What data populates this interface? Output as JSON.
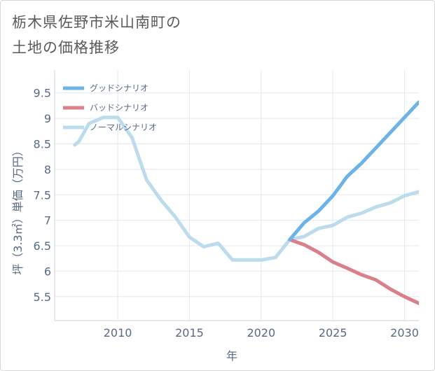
{
  "title_line1": "栃木県佐野市米山南町の",
  "title_line2": "土地の価格推移",
  "chart_data": {
    "type": "line",
    "xlabel": "年",
    "ylabel": "坪（3.3㎡）単価（万円）",
    "xlim": [
      2005.6,
      2031
    ],
    "ylim": [
      5.03,
      9.95
    ],
    "x_ticks": [
      2010,
      2015,
      2020,
      2025,
      2030
    ],
    "y_ticks": [
      5.5,
      6,
      6.5,
      7,
      7.5,
      8,
      8.5,
      9,
      9.5
    ],
    "grid": true,
    "legend_position": "top-left",
    "series": [
      {
        "name": "グッドシナリオ",
        "color": "#6cb4e8",
        "x": [
          2022,
          2023,
          2024,
          2025,
          2026,
          2027,
          2028,
          2029,
          2030,
          2031
        ],
        "y": [
          6.62,
          6.95,
          7.18,
          7.48,
          7.86,
          8.12,
          8.42,
          8.72,
          9.02,
          9.32
        ]
      },
      {
        "name": "バッドシナリオ",
        "color": "#d9808a",
        "x": [
          2022,
          2023,
          2024,
          2025,
          2026,
          2027,
          2028,
          2029,
          2030,
          2031
        ],
        "y": [
          6.62,
          6.52,
          6.37,
          6.18,
          6.06,
          5.93,
          5.83,
          5.65,
          5.5,
          5.37
        ]
      },
      {
        "name": "ノーマルシナリオ",
        "color": "#bcdcee",
        "x": [
          2007,
          2007.3,
          2008,
          2009,
          2010,
          2011,
          2012,
          2013,
          2014,
          2015,
          2016,
          2017,
          2018,
          2019,
          2020,
          2021,
          2022,
          2023,
          2024,
          2025,
          2026,
          2027,
          2028,
          2029,
          2030,
          2031
        ],
        "y": [
          8.48,
          8.55,
          8.9,
          9.02,
          9.02,
          8.62,
          7.8,
          7.4,
          7.07,
          6.67,
          6.48,
          6.55,
          6.22,
          6.22,
          6.22,
          6.27,
          6.62,
          6.68,
          6.84,
          6.9,
          7.06,
          7.14,
          7.26,
          7.34,
          7.48,
          7.56
        ]
      }
    ]
  }
}
